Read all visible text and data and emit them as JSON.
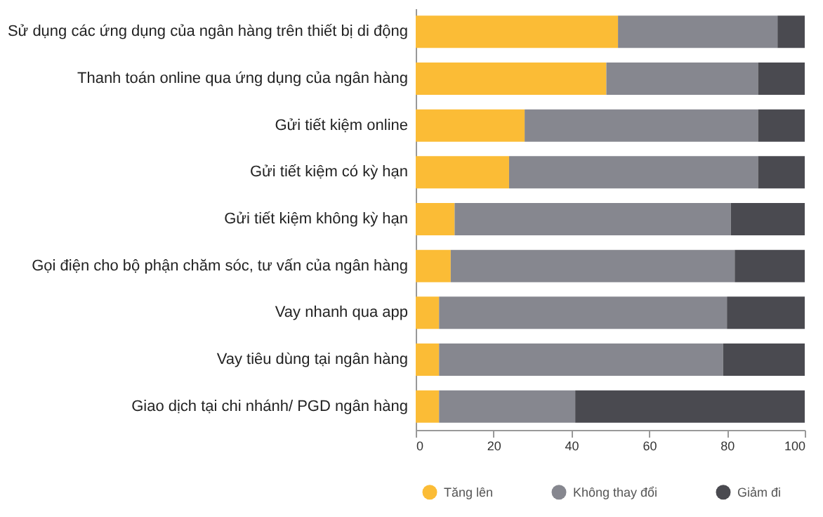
{
  "chart_data": {
    "type": "bar",
    "orientation": "horizontal",
    "stacked": true,
    "categories": [
      "Sử dụng các ứng dụng của ngân hàng trên thiết bị di động",
      "Thanh toán online qua ứng dụng của ngân hàng",
      "Gửi tiết kiệm online",
      "Gửi tiết kiệm có kỳ hạn",
      "Gửi tiết kiệm không kỳ hạn",
      "Gọi điện cho bộ phận chăm sóc, tư vấn của ngân hàng",
      "Vay nhanh qua app",
      "Vay tiêu dùng tại ngân hàng",
      "Giao dịch tại chi nhánh/ PGD ngân hàng"
    ],
    "series": [
      {
        "name": "Tăng lên",
        "color": "#fbbc36",
        "values": [
          52,
          49,
          28,
          24,
          10,
          9,
          6,
          6,
          6
        ]
      },
      {
        "name": "Không thay đổi",
        "color": "#86878f",
        "values": [
          41,
          39,
          60,
          64,
          71,
          73,
          74,
          73,
          35
        ]
      },
      {
        "name": "Giảm đi",
        "color": "#4a4a50",
        "values": [
          7,
          12,
          12,
          12,
          19,
          18,
          20,
          21,
          59
        ]
      }
    ],
    "xlim": [
      0,
      100
    ],
    "xticks": [
      0,
      20,
      40,
      60,
      80,
      100
    ],
    "grid": false,
    "legend": "bottom"
  }
}
